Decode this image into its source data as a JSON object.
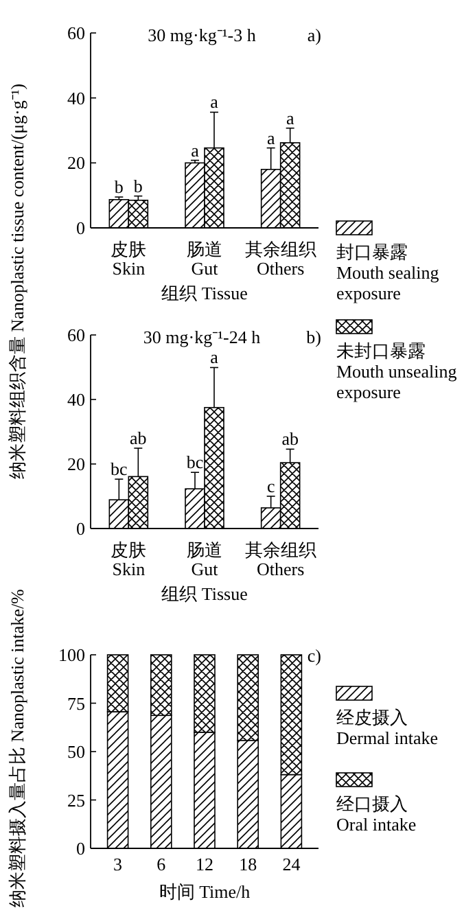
{
  "chart_data": [
    {
      "type": "bar",
      "title": "30 mg·kg⁻¹-3 h",
      "xlabel": "组织 Tissue",
      "ylabel": "纳米塑料组织含量 Nanoplastic tissue content/(μg·g⁻¹)",
      "categories": [
        "皮肤\nSkin",
        "肠道\nGut",
        "其余组织\nOthers"
      ],
      "series": [
        {
          "name": "封口暴露\nMouth sealing\nexposure",
          "color": "#000000",
          "values": [
            8.7,
            20.0,
            18.0
          ],
          "errors": [
            [
              8.7,
              9.5
            ],
            [
              20.0,
              20.8
            ],
            [
              18.0,
              24.6
            ]
          ],
          "value_labels": [
            "b",
            "a",
            "a"
          ]
        },
        {
          "name": "未封口暴露\nMouth unsealing\nexposure",
          "color": "#000000",
          "values": [
            8.5,
            24.6,
            26.2
          ],
          "errors": [
            [
              8.5,
              9.8
            ],
            [
              24.6,
              35.6
            ],
            [
              26.2,
              30.7
            ]
          ],
          "value_labels": [
            "b",
            "a",
            "a"
          ]
        }
      ],
      "ylim": [
        0,
        60
      ],
      "yticks": [
        0,
        20,
        40,
        60
      ],
      "annotations": [
        "a)"
      ],
      "legend": "right"
    },
    {
      "type": "bar",
      "title": "30 mg·kg⁻¹-24 h",
      "xlabel": "组织 Tissue",
      "categories": [
        "皮肤\nSkin",
        "肠道\nGut",
        "其余组织\nOthers"
      ],
      "series": [
        {
          "color": "#000000",
          "values": [
            8.9,
            12.3,
            6.4
          ],
          "errors": [
            [
              8.9,
              15.3
            ],
            [
              12.3,
              17.4
            ],
            [
              6.4,
              10.0
            ]
          ],
          "value_labels": [
            "bc",
            "bc",
            "c"
          ]
        },
        {
          "color": "#000000",
          "values": [
            16.1,
            37.5,
            20.4
          ],
          "errors": [
            [
              16.1,
              24.9
            ],
            [
              37.5,
              49.9
            ],
            [
              20.4,
              24.6
            ]
          ],
          "value_labels": [
            "ab",
            "a",
            "ab"
          ]
        }
      ],
      "ylim": [
        0,
        60
      ],
      "yticks": [
        0,
        20,
        40,
        60
      ],
      "annotations": [
        "b)"
      ]
    },
    {
      "type": "bar",
      "stacked": true,
      "xlabel": "时间 Time/h",
      "ylabel": "纳米塑料摄入量占比 Nanoplastic intake/%",
      "categories": [
        "3",
        "6",
        "12",
        "18",
        "24"
      ],
      "series": [
        {
          "name": "经皮摄入\nDermal intake",
          "color": "#000000",
          "values": [
            70.6,
            68.7,
            60.0,
            55.8,
            38.1
          ]
        },
        {
          "name": "经口摄入\nOral intake",
          "color": "#000000",
          "values": [
            29.4,
            31.3,
            40.0,
            44.2,
            61.9
          ]
        }
      ],
      "ylim": [
        0,
        100
      ],
      "yticks": [
        0,
        25,
        50,
        75,
        100
      ],
      "annotations": [
        "c)"
      ],
      "legend": "right"
    }
  ]
}
